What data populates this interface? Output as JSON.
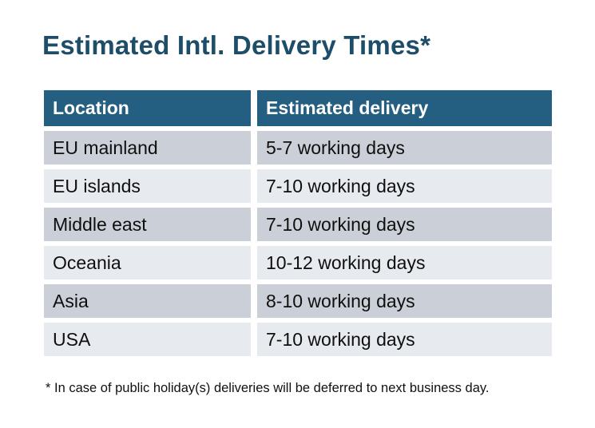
{
  "page": {
    "title": "Estimated Intl. Delivery Times*",
    "footnote": "* In case of public holiday(s) deliveries will be deferred to next business day."
  },
  "table": {
    "columns": [
      "Location",
      "Estimated delivery"
    ],
    "rows": [
      {
        "location": "EU mainland",
        "delivery": "5-7 working days"
      },
      {
        "location": "EU islands",
        "delivery": "7-10 working days"
      },
      {
        "location": "Middle east",
        "delivery": "7-10 working days"
      },
      {
        "location": "Oceania",
        "delivery": "10-12 working days"
      },
      {
        "location": "Asia",
        "delivery": "8-10 working days"
      },
      {
        "location": "USA",
        "delivery": "7-10 working days"
      }
    ]
  },
  "colors": {
    "header_bg": "#245e80",
    "title": "#1d4d68",
    "row_odd": "#cbcfd8",
    "row_even": "#e7eaee",
    "text": "#0f0f0f"
  }
}
